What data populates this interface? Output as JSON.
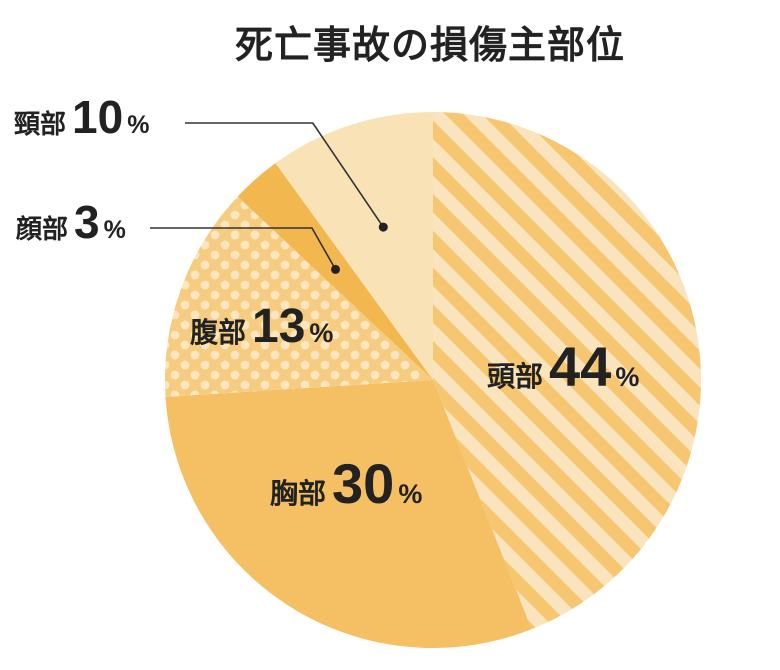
{
  "chart_data": {
    "type": "pie",
    "title": "死亡事故の損傷主部位",
    "unit": "%",
    "slices": [
      {
        "label": "頭部",
        "value": 44,
        "color": "#f6c670",
        "pattern": "stripes"
      },
      {
        "label": "胸部",
        "value": 30,
        "color": "#f5c064",
        "pattern": "solid"
      },
      {
        "label": "腹部",
        "value": 13,
        "color": "#f8d69a",
        "pattern": "dots"
      },
      {
        "label": "顔部",
        "value": 3,
        "color": "#f3b750",
        "pattern": "solid"
      },
      {
        "label": "頸部",
        "value": 10,
        "color": "#f9e2b6",
        "pattern": "solid"
      }
    ]
  }
}
